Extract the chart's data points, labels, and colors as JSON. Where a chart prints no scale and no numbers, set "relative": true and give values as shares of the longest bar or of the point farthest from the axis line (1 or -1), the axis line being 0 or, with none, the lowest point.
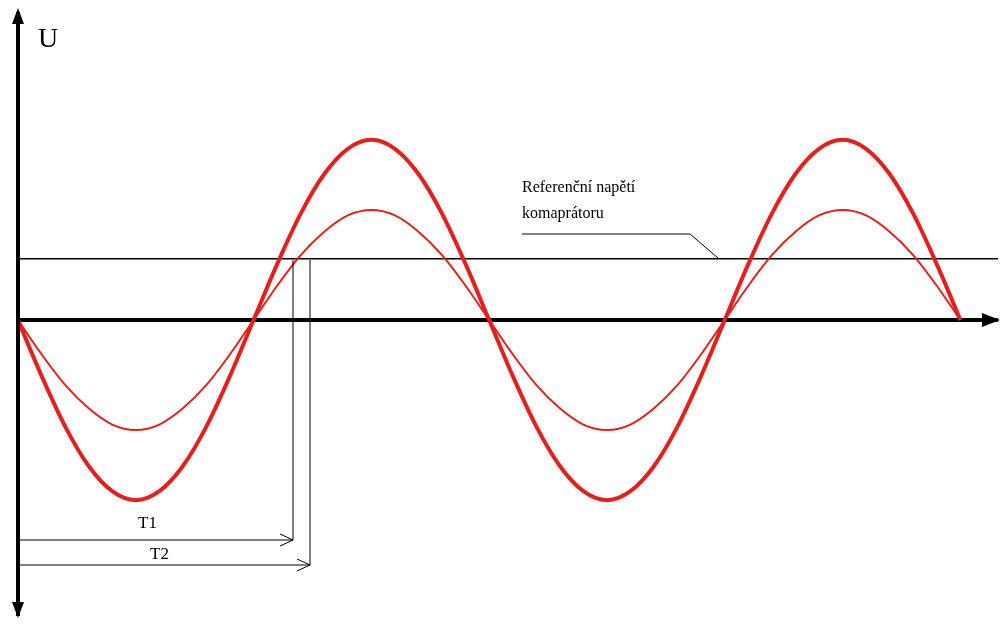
{
  "chart_data": {
    "type": "line",
    "relative": true,
    "ylabel": "U",
    "marker": "none",
    "line_style": "solid",
    "categories": [
      null,
      null,
      null,
      null,
      null,
      null,
      null,
      null,
      null,
      null,
      null,
      null,
      null,
      null,
      null,
      null,
      null,
      null,
      null,
      null,
      null,
      null,
      null,
      null,
      null,
      null,
      null,
      null,
      null,
      null,
      null,
      null,
      null,
      null,
      null,
      null,
      null,
      null,
      null,
      null,
      null
    ],
    "series": [
      {
        "color": "#e3201b",
        "values": [
          0,
          -0.31,
          -0.59,
          -0.81,
          -0.95,
          -1,
          -0.95,
          -0.81,
          -0.59,
          -0.31,
          0,
          0.31,
          0.59,
          0.81,
          0.95,
          1,
          0.95,
          0.81,
          0.59,
          0.31,
          0,
          -0.31,
          -0.59,
          -0.81,
          -0.95,
          -1,
          -0.95,
          -0.81,
          -0.59,
          -0.31,
          0,
          0.31,
          0.59,
          0.81,
          0.95,
          1,
          0.95,
          0.81,
          0.59,
          0.31,
          0
        ]
      },
      {
        "color": "#e3201b",
        "values": [
          0,
          -0.19,
          -0.36,
          -0.49,
          -0.58,
          -0.61,
          -0.58,
          -0.49,
          -0.36,
          -0.19,
          0,
          0.19,
          0.36,
          0.49,
          0.58,
          0.61,
          0.58,
          0.49,
          0.36,
          0.19,
          0,
          -0.19,
          -0.36,
          -0.49,
          -0.58,
          -0.61,
          -0.58,
          -0.49,
          -0.36,
          -0.19,
          0,
          0.19,
          0.36,
          0.49,
          0.58,
          0.61,
          0.58,
          0.49,
          0.36,
          0.19,
          0
        ]
      }
    ],
    "ref_lines": [
      {
        "axis": "y",
        "value": 0.34,
        "label": "Referenční napětí komaprátoru",
        "color": "#000000"
      }
    ],
    "annotations": [
      "T1",
      "T2"
    ]
  }
}
